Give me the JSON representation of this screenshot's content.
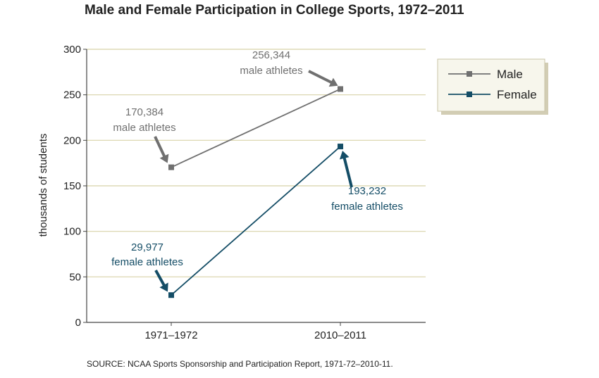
{
  "chart_data": {
    "type": "line",
    "title": "Male and Female Participation in College Sports, 1972–2011",
    "ylabel": "thousands of students",
    "xlabel": "",
    "categories": [
      "1971–1972",
      "2010–2011"
    ],
    "ylim": [
      0,
      300
    ],
    "yticks": [
      0,
      50,
      100,
      150,
      200,
      250,
      300
    ],
    "grid": true,
    "legend_position": "top-right",
    "series": [
      {
        "name": "Male",
        "values": [
          170.384,
          256.344
        ],
        "color": "#707070"
      },
      {
        "name": "Female",
        "values": [
          29.977,
          193.232
        ],
        "color": "#144d66"
      }
    ],
    "annotations": [
      {
        "series": 0,
        "point": 0,
        "lines": [
          "170,384",
          "male athletes"
        ]
      },
      {
        "series": 0,
        "point": 1,
        "lines": [
          "256,344",
          "male athletes"
        ]
      },
      {
        "series": 1,
        "point": 0,
        "lines": [
          "29,977",
          "female athletes"
        ]
      },
      {
        "series": 1,
        "point": 1,
        "lines": [
          "193,232",
          "female athletes"
        ]
      }
    ]
  },
  "source": "SOURCE: NCAA Sports Sponsorship and Participation Report, 1971-72–2010-11."
}
